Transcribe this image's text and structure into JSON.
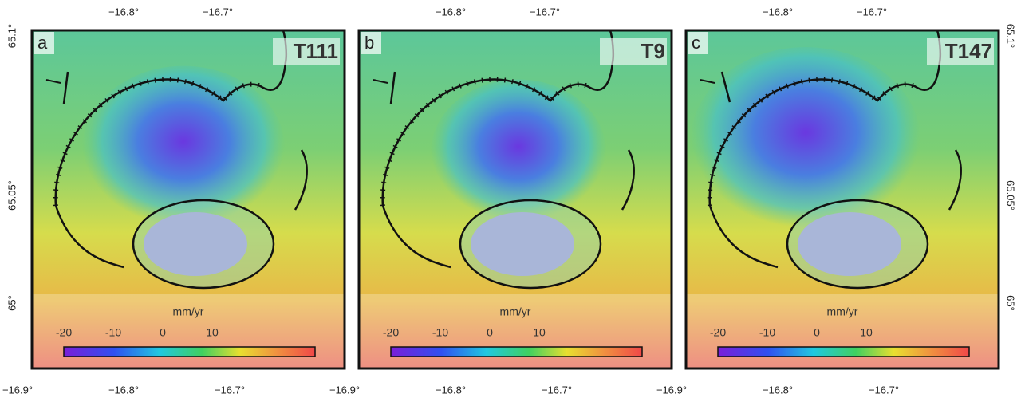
{
  "panels": [
    {
      "label": "a",
      "track": "T111",
      "unit": "mm/yr",
      "colorbar_ticks": [
        "-20",
        "-10",
        "0",
        "10"
      ],
      "top_ticks": [
        "−16.8°",
        "−16.7°"
      ],
      "bottom_ticks": [
        "−16.9°",
        "−16.8°",
        "−16.7°"
      ],
      "left_ticks": [
        "65.1°",
        "65.05°",
        "65°"
      ]
    },
    {
      "label": "b",
      "track": "T9",
      "unit": "mm/yr",
      "colorbar_ticks": [
        "-20",
        "-10",
        "0",
        "10"
      ],
      "top_ticks": [
        "−16.8°",
        "−16.7°"
      ],
      "bottom_ticks": [
        "−16.9°",
        "−16.8°",
        "−16.7°"
      ]
    },
    {
      "label": "c",
      "track": "T147",
      "unit": "mm/yr",
      "colorbar_ticks": [
        "-20",
        "-10",
        "0",
        "10"
      ],
      "top_ticks": [
        "−16.8°",
        "−16.7°"
      ],
      "bottom_ticks": [
        "−16.9°",
        "−16.8°",
        "−16.7°"
      ],
      "right_ticks": [
        "65.1°",
        "65.05°",
        "65°"
      ]
    }
  ]
}
